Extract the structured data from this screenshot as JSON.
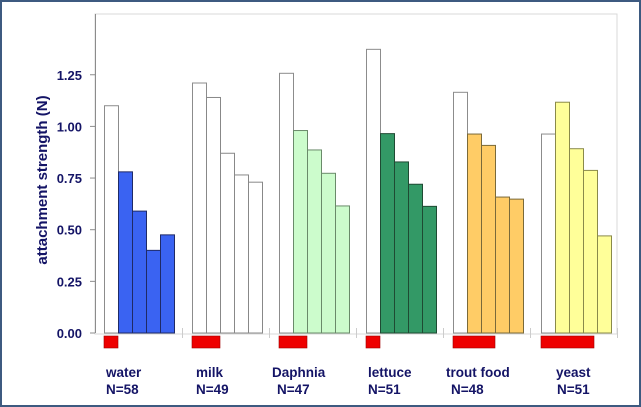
{
  "chart_data": {
    "type": "bar",
    "title": "",
    "xlabel": "",
    "ylabel": "attachment strength (N)",
    "ylim": [
      0,
      1.5
    ],
    "yticks": [
      "0.00",
      "0.25",
      "0.50",
      "0.75",
      "1.00",
      "1.25"
    ],
    "ytick_values": [
      0,
      0.25,
      0.5,
      0.75,
      1.0,
      1.25
    ],
    "grid": false,
    "legend": "none",
    "groups": [
      {
        "name": "water",
        "n_label": "N=58",
        "color": "#3a63f2",
        "stroke": "#1f2a66",
        "first_bar_color": "#ffffff",
        "values": [
          1.1,
          0.78,
          0.59,
          0.4,
          0.475
        ],
        "red_bar_fraction": 0.2
      },
      {
        "name": "milk",
        "n_label": "N=49",
        "color": "#ffffff",
        "stroke": "#888888",
        "first_bar_color": "#ffffff",
        "values": [
          1.21,
          1.14,
          0.87,
          0.765,
          0.73
        ],
        "red_bar_fraction": 0.4
      },
      {
        "name": "Daphnia",
        "n_label": "N=47",
        "color": "#ccfccc",
        "stroke": "#6a8a6a",
        "first_bar_color": "#ffffff",
        "values": [
          1.257,
          0.98,
          0.886,
          0.773,
          0.615
        ],
        "red_bar_fraction": 0.4
      },
      {
        "name": "lettuce",
        "n_label": "N=51",
        "color": "#339966",
        "stroke": "#1f4a33",
        "first_bar_color": "#ffffff",
        "values": [
          1.373,
          0.965,
          0.828,
          0.72,
          0.613
        ],
        "red_bar_fraction": 0.2
      },
      {
        "name": "trout food",
        "n_label": "N=48",
        "color": "#ffcc66",
        "stroke": "#7a6a3a",
        "first_bar_color": "#ffffff",
        "values": [
          1.165,
          0.963,
          0.908,
          0.658,
          0.648
        ],
        "red_bar_fraction": 0.6
      },
      {
        "name": "yeast",
        "n_label": "N=51",
        "color": "#ffff99",
        "stroke": "#8a8a4a",
        "first_bar_color": "#ffffff",
        "values": [
          0.963,
          1.117,
          0.892,
          0.787,
          0.47
        ],
        "red_bar_fraction": 0.75
      }
    ],
    "red_bar_color": "#ee0000"
  }
}
